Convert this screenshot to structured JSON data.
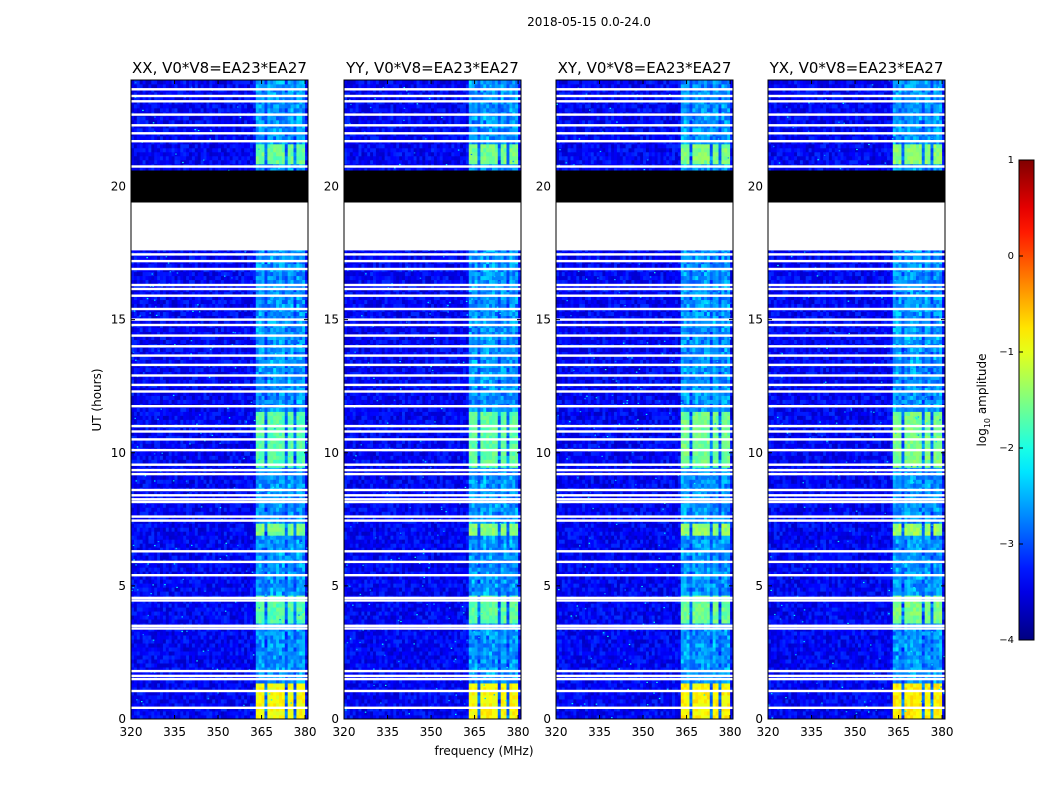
{
  "chart_data": {
    "type": "heatmap",
    "title": "2018-05-15 0.0-24.0",
    "xlabel": "frequency (MHz)",
    "ylabel": "UT (hours)",
    "xlim": [
      320,
      381
    ],
    "ylim": [
      0,
      24
    ],
    "x_ticks": [
      "320",
      "335",
      "350",
      "365",
      "380"
    ],
    "x_tick_values": [
      320,
      335,
      350,
      365,
      380
    ],
    "y_ticks": [
      "0",
      "5",
      "10",
      "15",
      "20"
    ],
    "y_tick_values": [
      0,
      5,
      10,
      15,
      20
    ],
    "colorbar": {
      "label": "log",
      "label_sub": "10",
      "label_rest": " amplitude",
      "range": [
        -4,
        1
      ],
      "ticks": [
        "1",
        "0",
        "−1",
        "−2",
        "−3",
        "−4"
      ],
      "tick_values": [
        1,
        0,
        -1,
        -2,
        -3,
        -4
      ]
    },
    "panels": [
      {
        "name": "XX",
        "title": "XX, V0*V8=EA23*EA27",
        "pol_scale": 1.0
      },
      {
        "name": "YY",
        "title": "YY, V0*V8=EA23*EA27",
        "pol_scale": 0.97
      },
      {
        "name": "XY",
        "title": "XY, V0*V8=EA23*EA27",
        "pol_scale": 0.93
      },
      {
        "name": "YX",
        "title": "YX, V0*V8=EA23*EA27",
        "pol_scale": 0.9
      }
    ],
    "background_log_amplitude": -3.4,
    "rfi_channel_bands_mhz": [
      [
        363.5,
        366.5
      ],
      [
        367,
        369.8
      ],
      [
        370.5,
        373
      ],
      [
        374,
        376.5
      ],
      [
        377,
        380
      ]
    ],
    "rfi_bursts": [
      {
        "ut": [
          0.0,
          1.4
        ],
        "log_amplitude": -0.9
      },
      {
        "ut": [
          3.6,
          4.6
        ],
        "log_amplitude": -1.7
      },
      {
        "ut": [
          6.9,
          7.4
        ],
        "log_amplitude": -1.5
      },
      {
        "ut": [
          9.4,
          11.6
        ],
        "log_amplitude": -1.7
      },
      {
        "ut": [
          20.8,
          21.6
        ],
        "log_amplitude": -1.6
      }
    ],
    "flagged_ut_ranges": [
      [
        17.6,
        19.4
      ]
    ],
    "zero_ut_ranges": [
      [
        19.4,
        20.6
      ]
    ],
    "flagged_ut_lines": [
      0.42,
      1.05,
      1.5,
      1.62,
      1.8,
      3.4,
      3.5,
      4.45,
      4.55,
      5.4,
      5.9,
      6.3,
      7.45,
      7.6,
      8.15,
      8.25,
      8.4,
      8.6,
      9.2,
      9.35,
      9.55,
      10.1,
      10.5,
      10.8,
      11.0,
      11.75,
      12.3,
      12.55,
      12.9,
      13.3,
      13.65,
      14.0,
      14.4,
      14.8,
      15.0,
      15.4,
      15.9,
      16.15,
      16.3,
      16.9,
      17.2,
      17.45,
      20.75,
      21.7,
      22.0,
      22.3,
      22.7,
      23.2,
      23.4,
      23.65
    ]
  }
}
